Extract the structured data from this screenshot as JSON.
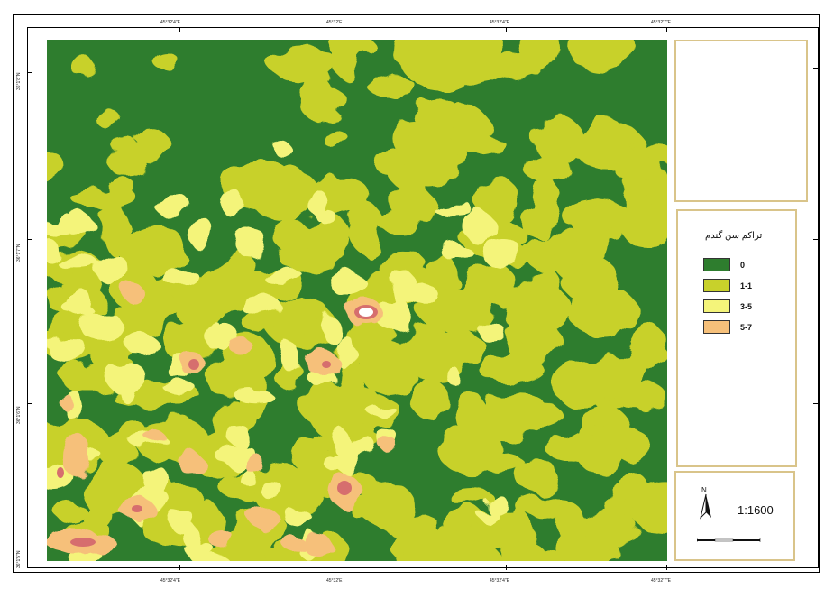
{
  "map": {
    "legend": {
      "title": "تراکم سن گندم",
      "items": [
        {
          "label": "0",
          "color": "#2e7d2e"
        },
        {
          "label": "1-1",
          "color": "#c8d12b"
        },
        {
          "label": "3-5",
          "color": "#f4f47a"
        },
        {
          "label": "5-7",
          "color": "#f6c07a"
        }
      ]
    },
    "scale": "1:1600",
    "north_label": "N",
    "colors": {
      "frame_panel": "#d9c48a",
      "peak_inner": "#d66e6e",
      "peak_core": "#ffffff"
    },
    "coords": {
      "top": [
        "45°32'4\"E",
        "45°32'E",
        "45°32'4\"E",
        "45°32'7\"E"
      ],
      "bottom": [
        "45°32'4\"E",
        "45°32'E",
        "45°32'4\"E",
        "45°32'7\"E"
      ],
      "left": [
        "36°1'8\"N",
        "36°1'7\"N",
        "36°1'6\"N",
        "36°1'5\"N"
      ]
    }
  }
}
